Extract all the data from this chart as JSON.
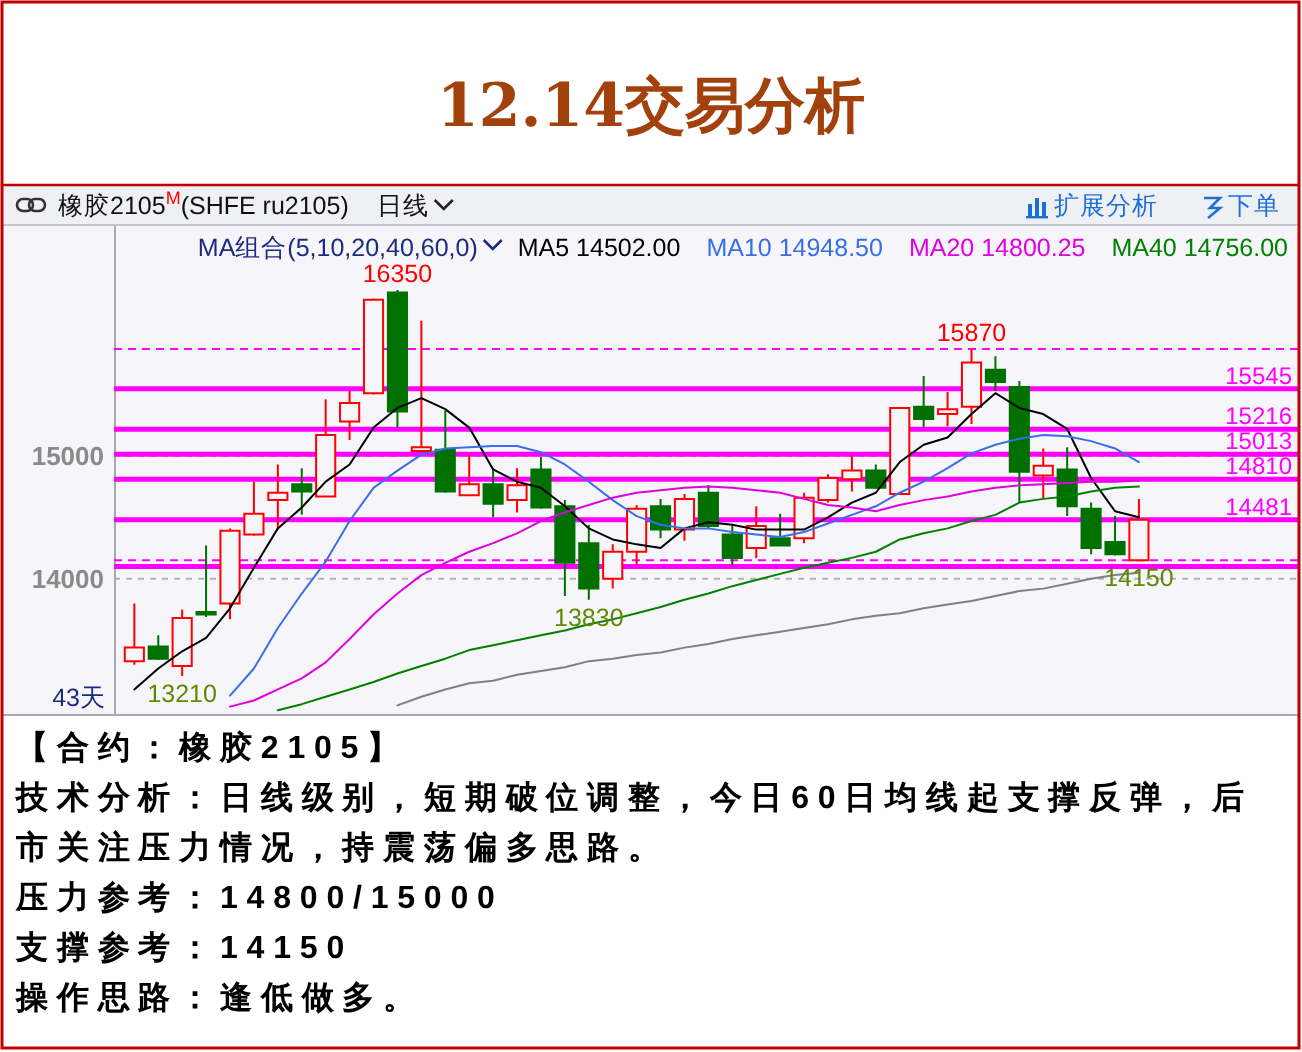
{
  "chart_data": {
    "type": "candlestick",
    "title": "12.14交易分析",
    "subtitle": "橡胶2105$^{M}$(SHFE ru2105)",
    "legend_title": "MA组合(5,10,20,40,60,0)",
    "categories": [
      null,
      null,
      null,
      null,
      null,
      null,
      null,
      null,
      null,
      null,
      null,
      null,
      null,
      null,
      null,
      null,
      null,
      null,
      null,
      null,
      null,
      null,
      null,
      null,
      null,
      null,
      null,
      null,
      null,
      null,
      null,
      null,
      null,
      null,
      null,
      null,
      null,
      null,
      null,
      null,
      null,
      null,
      null
    ],
    "ohlc": [
      [
        13330,
        13800,
        13300,
        13440
      ],
      [
        13450,
        13540,
        13340,
        13350
      ],
      [
        13290,
        13750,
        13210,
        13680
      ],
      [
        13730,
        14270,
        13690,
        13710
      ],
      [
        13800,
        14410,
        13670,
        14390
      ],
      [
        14360,
        14790,
        14350,
        14530
      ],
      [
        14640,
        14930,
        14400,
        14700
      ],
      [
        14770,
        14900,
        14520,
        14710
      ],
      [
        14670,
        15460,
        14670,
        15170
      ],
      [
        15280,
        15530,
        15130,
        15430
      ],
      [
        15510,
        16280,
        15500,
        16270
      ],
      [
        16330,
        16350,
        15230,
        15360
      ],
      [
        15040,
        16100,
        15030,
        15070
      ],
      [
        15050,
        15370,
        14700,
        14710
      ],
      [
        14680,
        15010,
        14680,
        14770
      ],
      [
        14770,
        14900,
        14500,
        14610
      ],
      [
        14640,
        14900,
        14540,
        14760
      ],
      [
        14890,
        14990,
        14570,
        14580
      ],
      [
        14590,
        14640,
        13860,
        14130
      ],
      [
        14290,
        14440,
        13830,
        13920
      ],
      [
        14000,
        14280,
        13920,
        14220
      ],
      [
        14220,
        14600,
        14110,
        14570
      ],
      [
        14590,
        14650,
        14330,
        14400
      ],
      [
        14400,
        14690,
        14310,
        14650
      ],
      [
        14700,
        14760,
        14410,
        14430
      ],
      [
        14360,
        14440,
        14110,
        14170
      ],
      [
        14250,
        14590,
        14170,
        14430
      ],
      [
        14330,
        14530,
        14270,
        14270
      ],
      [
        14330,
        14700,
        14290,
        14660
      ],
      [
        14640,
        14850,
        14620,
        14820
      ],
      [
        14810,
        15010,
        14710,
        14880
      ],
      [
        14880,
        14930,
        14730,
        14740
      ],
      [
        14690,
        15390,
        14690,
        15390
      ],
      [
        15400,
        15650,
        15230,
        15300
      ],
      [
        15340,
        15520,
        15240,
        15380
      ],
      [
        15400,
        15870,
        15260,
        15760
      ],
      [
        15700,
        15810,
        15530,
        15600
      ],
      [
        15560,
        15610,
        14620,
        14870
      ],
      [
        14840,
        15060,
        14650,
        14920
      ],
      [
        14890,
        15070,
        14510,
        14590
      ],
      [
        14570,
        14620,
        14200,
        14250
      ],
      [
        14300,
        14510,
        14190,
        14200
      ],
      [
        14150,
        14650,
        14150,
        14480
      ]
    ],
    "series": [
      {
        "name": "MA5 14502.00",
        "type": "line",
        "color": "#000000",
        "values": [
          13100,
          13270,
          13410,
          13520,
          13760,
          14090,
          14410,
          14580,
          14790,
          14930,
          15230,
          15390,
          15470,
          15380,
          15230,
          14890,
          14790,
          14740,
          14590,
          14410,
          14320,
          14280,
          14250,
          14410,
          14460,
          14440,
          14400,
          14400,
          14400,
          14500,
          14620,
          14700,
          14950,
          15090,
          15150,
          15340,
          15510,
          15390,
          15340,
          15220,
          14820,
          14550,
          14500
        ]
      },
      {
        "name": "MA10 14948.50",
        "type": "line",
        "color": "#3a6ee8",
        "values": [
          null,
          null,
          null,
          null,
          13050,
          13270,
          13600,
          13880,
          14140,
          14470,
          14740,
          14880,
          15010,
          15060,
          15070,
          15080,
          15080,
          15030,
          14930,
          14790,
          14640,
          14510,
          14440,
          14410,
          14410,
          14380,
          14360,
          14340,
          14380,
          14450,
          14520,
          14590,
          14700,
          14790,
          14900,
          15020,
          15090,
          15140,
          15170,
          15160,
          15120,
          15060,
          14950
        ]
      },
      {
        "name": "MA20 14800.25",
        "type": "line",
        "color": "#e000e0",
        "values": [
          null,
          null,
          null,
          null,
          12960,
          13010,
          13100,
          13190,
          13320,
          13510,
          13710,
          13880,
          14030,
          14130,
          14220,
          14290,
          14370,
          14470,
          14540,
          14600,
          14660,
          14700,
          14720,
          14740,
          14750,
          14740,
          14720,
          14700,
          14650,
          14600,
          14580,
          14550,
          14600,
          14640,
          14670,
          14710,
          14740,
          14760,
          14770,
          14780,
          14790,
          14790,
          14800
        ]
      },
      {
        "name": "MA40 14756.00",
        "type": "line",
        "color": "#008000",
        "values": [
          null,
          null,
          null,
          null,
          null,
          null,
          12930,
          12980,
          13040,
          13100,
          13160,
          13230,
          13290,
          13350,
          13420,
          13460,
          13500,
          13540,
          13580,
          13630,
          13670,
          13720,
          13770,
          13830,
          13880,
          13940,
          13990,
          14040,
          14090,
          14130,
          14170,
          14220,
          14320,
          14370,
          14410,
          14470,
          14520,
          14620,
          14650,
          14670,
          14710,
          14740,
          14750
        ]
      },
      {
        "type": "line",
        "color": "#808080",
        "values": [
          null,
          null,
          null,
          null,
          null,
          null,
          null,
          null,
          null,
          null,
          null,
          12970,
          13040,
          13100,
          13150,
          13170,
          13220,
          13250,
          13280,
          13330,
          13350,
          13380,
          13400,
          13440,
          13470,
          13510,
          13540,
          13570,
          13600,
          13630,
          13670,
          13700,
          13720,
          13760,
          13790,
          13820,
          13860,
          13900,
          13920,
          13960,
          14000,
          14030,
          14050
        ]
      }
    ],
    "ylim": [
      12900,
      16870
    ],
    "yticks": [
      14000,
      15000
    ],
    "grid": "y",
    "legend": "top right",
    "ref_lines": [
      {
        "axis": "y",
        "value": 15545,
        "label": "15545",
        "color": "#ff00ff"
      },
      {
        "axis": "y",
        "value": 15216,
        "label": "15216",
        "color": "#ff00ff"
      },
      {
        "axis": "y",
        "value": 15013,
        "label": "15013",
        "color": "#ff00ff"
      },
      {
        "axis": "y",
        "value": 14810,
        "label": "14810",
        "color": "#ff00ff"
      },
      {
        "axis": "y",
        "value": 14481,
        "label": "14481",
        "color": "#ff00ff"
      },
      {
        "axis": "y",
        "value": 14100,
        "color": "#ff00ff"
      },
      {
        "axis": "y",
        "value": 15870,
        "color": "#ff00ff",
        "line_style": "dashed"
      },
      {
        "axis": "y",
        "value": 14150,
        "color": "#ff00ff",
        "line_style": "dashed"
      }
    ],
    "annotations": [
      {
        "text": "16350",
        "y": 16350
      },
      {
        "text": "15870",
        "y": 15870
      },
      {
        "text": "13830",
        "y": 13830
      },
      {
        "text": "14150",
        "y": 14150
      },
      {
        "text": "13210",
        "y": 13210
      },
      "43天",
      "日线",
      "扩展分析",
      "下单",
      "【合约：橡胶2105】",
      "技术分析：日线级别，短期破位调整，今日60日均线起支撑反弹，后市关注压力情况，持震荡偏多思路。",
      "压力参考：14800/15000",
      "支撑参考：14150",
      "操作思路：逢低做多。"
    ]
  }
}
